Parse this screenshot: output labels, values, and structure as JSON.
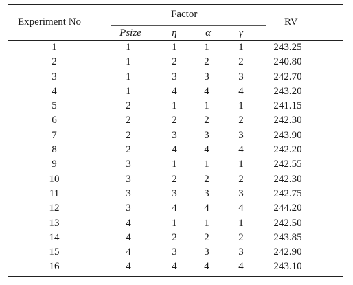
{
  "headers": {
    "experiment_no": "Experiment No",
    "factor": "Factor",
    "rv": "RV",
    "psize": "Psize",
    "eta": "η",
    "alpha": "α",
    "gamma": "γ"
  },
  "rows": [
    {
      "exp": "1",
      "psize": "1",
      "eta": "1",
      "alpha": "1",
      "gamma": "1",
      "rv": "243.25"
    },
    {
      "exp": "2",
      "psize": "1",
      "eta": "2",
      "alpha": "2",
      "gamma": "2",
      "rv": "240.80"
    },
    {
      "exp": "3",
      "psize": "1",
      "eta": "3",
      "alpha": "3",
      "gamma": "3",
      "rv": "242.70"
    },
    {
      "exp": "4",
      "psize": "1",
      "eta": "4",
      "alpha": "4",
      "gamma": "4",
      "rv": "243.20"
    },
    {
      "exp": "5",
      "psize": "2",
      "eta": "1",
      "alpha": "1",
      "gamma": "1",
      "rv": "241.15"
    },
    {
      "exp": "6",
      "psize": "2",
      "eta": "2",
      "alpha": "2",
      "gamma": "2",
      "rv": "242.30"
    },
    {
      "exp": "7",
      "psize": "2",
      "eta": "3",
      "alpha": "3",
      "gamma": "3",
      "rv": "243.90"
    },
    {
      "exp": "8",
      "psize": "2",
      "eta": "4",
      "alpha": "4",
      "gamma": "4",
      "rv": "242.20"
    },
    {
      "exp": "9",
      "psize": "3",
      "eta": "1",
      "alpha": "1",
      "gamma": "1",
      "rv": "242.55"
    },
    {
      "exp": "10",
      "psize": "3",
      "eta": "2",
      "alpha": "2",
      "gamma": "2",
      "rv": "242.30"
    },
    {
      "exp": "11",
      "psize": "3",
      "eta": "3",
      "alpha": "3",
      "gamma": "3",
      "rv": "242.75"
    },
    {
      "exp": "12",
      "psize": "3",
      "eta": "4",
      "alpha": "4",
      "gamma": "4",
      "rv": "244.20"
    },
    {
      "exp": "13",
      "psize": "4",
      "eta": "1",
      "alpha": "1",
      "gamma": "1",
      "rv": "242.50"
    },
    {
      "exp": "14",
      "psize": "4",
      "eta": "2",
      "alpha": "2",
      "gamma": "2",
      "rv": "243.85"
    },
    {
      "exp": "15",
      "psize": "4",
      "eta": "3",
      "alpha": "3",
      "gamma": "3",
      "rv": "242.90"
    },
    {
      "exp": "16",
      "psize": "4",
      "eta": "4",
      "alpha": "4",
      "gamma": "4",
      "rv": "243.10"
    }
  ]
}
